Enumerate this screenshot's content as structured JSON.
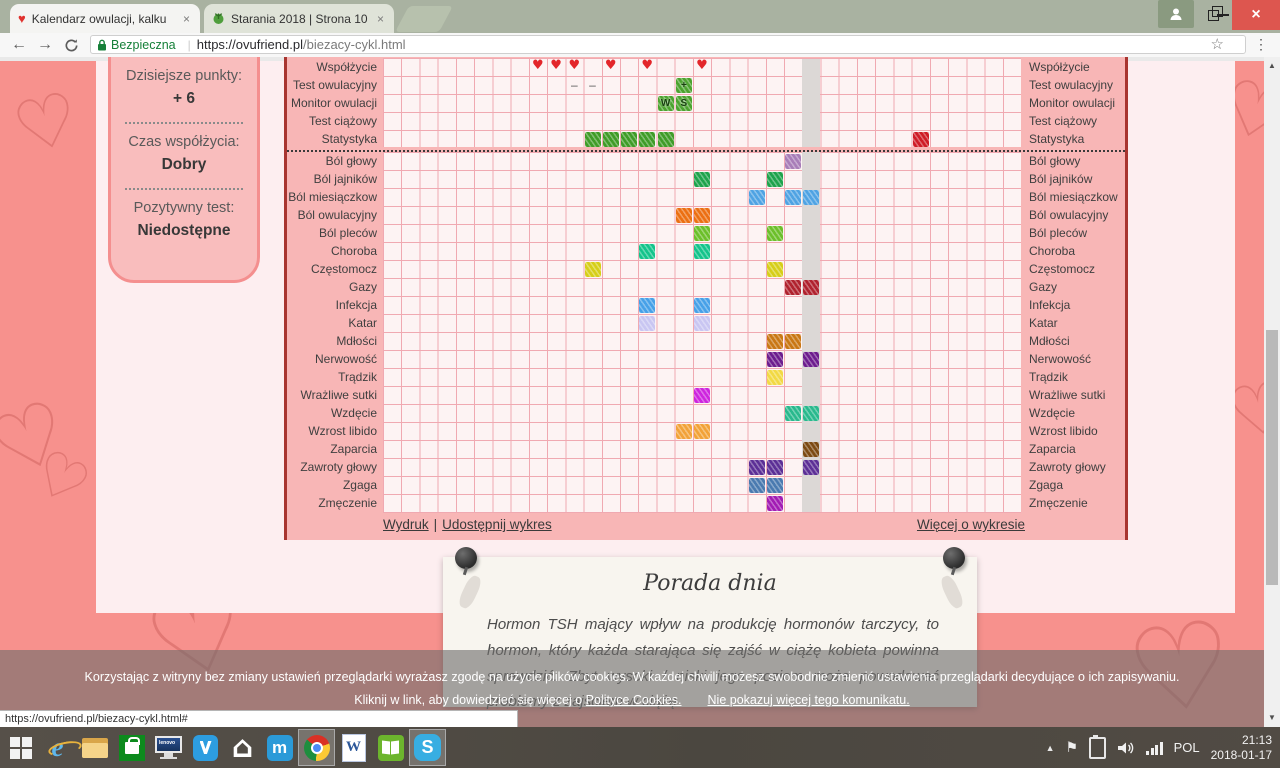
{
  "browser": {
    "tabs": [
      {
        "title": "Kalendarz owulacji, kalku",
        "close": "×"
      },
      {
        "title": "Starania 2018 | Strona 10",
        "close": "×"
      }
    ],
    "security_label": "Bezpieczna",
    "url_host": "https://ovufriend.pl",
    "url_path": "/biezacy-cykl.html"
  },
  "sidebar": {
    "items": [
      {
        "label": "Dzisiejsze punkty:",
        "value": "+ 6"
      },
      {
        "label": "Czas współżycia:",
        "value": "Dobry"
      },
      {
        "label": "Pozytywny test:",
        "value": "Niedostępne"
      }
    ]
  },
  "chart": {
    "num_cols": 35,
    "today_col": 23,
    "top_rows": [
      {
        "label": "Współżycie",
        "marks": [
          {
            "kind": "heart",
            "col": 8
          },
          {
            "kind": "heart",
            "col": 9
          },
          {
            "kind": "heart",
            "col": 10
          },
          {
            "kind": "heart",
            "col": 12
          },
          {
            "kind": "heart",
            "col": 14
          },
          {
            "kind": "heart",
            "col": 17
          }
        ]
      },
      {
        "label": "Test owulacyjny",
        "marks": [
          {
            "kind": "minus",
            "col": 10
          },
          {
            "kind": "minus",
            "col": 11
          },
          {
            "kind": "cell",
            "col": 16,
            "letter": "+",
            "color": "#4ba32e"
          }
        ]
      },
      {
        "label": "Monitor owulacji",
        "marks": [
          {
            "kind": "cell",
            "col": 15,
            "letter": "W",
            "color": "#4ba32e"
          },
          {
            "kind": "cell",
            "col": 16,
            "letter": "S",
            "color": "#4ba32e"
          }
        ]
      },
      {
        "label": "Test ciążowy",
        "marks": []
      },
      {
        "label": "Statystyka",
        "marks": [
          {
            "kind": "cell",
            "col": 11,
            "color": "#3f9c28"
          },
          {
            "kind": "cell",
            "col": 12,
            "color": "#3f9c28"
          },
          {
            "kind": "cell",
            "col": 13,
            "color": "#3f9c28"
          },
          {
            "kind": "cell",
            "col": 14,
            "color": "#3f9c28"
          },
          {
            "kind": "cell",
            "col": 15,
            "color": "#3f9c28"
          },
          {
            "kind": "cell",
            "col": 29,
            "color": "#cf1b26"
          }
        ]
      }
    ],
    "symptom_rows": [
      {
        "label": "Ból głowy",
        "color": "#a87db8",
        "cols": [
          22
        ]
      },
      {
        "label": "Ból jajników",
        "color": "#1ea34c",
        "cols": [
          17,
          21
        ]
      },
      {
        "label": "Ból miesiączkow",
        "color": "#4fa3e3",
        "cols": [
          20,
          22,
          23
        ]
      },
      {
        "label": "Ból owulacyjny",
        "color": "#ec6f12",
        "cols": [
          16,
          17
        ]
      },
      {
        "label": "Ból pleców",
        "color": "#6cbf2a",
        "cols": [
          17,
          21
        ]
      },
      {
        "label": "Choroba",
        "color": "#13c48b",
        "cols": [
          14,
          17
        ]
      },
      {
        "label": "Częstomocz",
        "color": "#d6ce18",
        "cols": [
          11,
          21
        ]
      },
      {
        "label": "Gazy",
        "color": "#b0222e",
        "cols": [
          22,
          23
        ]
      },
      {
        "label": "Infekcja",
        "color": "#47a1e8",
        "cols": [
          14,
          17
        ]
      },
      {
        "label": "Katar",
        "color": "#c9c6f2",
        "cols": [
          14,
          17
        ]
      },
      {
        "label": "Mdłości",
        "color": "#c97714",
        "cols": [
          21,
          22
        ]
      },
      {
        "label": "Nerwowość",
        "color": "#6d1d8e",
        "cols": [
          21,
          23
        ]
      },
      {
        "label": "Trądzik",
        "color": "#f2d944",
        "cols": [
          21
        ]
      },
      {
        "label": "Wrażliwe sutki",
        "color": "#ce24de",
        "cols": [
          17
        ]
      },
      {
        "label": "Wzdęcie",
        "color": "#29b98d",
        "cols": [
          22,
          23
        ]
      },
      {
        "label": "Wzrost libido",
        "color": "#f2a238",
        "cols": [
          16,
          17
        ]
      },
      {
        "label": "Zaparcia",
        "color": "#7c4a12",
        "cols": [
          23
        ]
      },
      {
        "label": "Zawroty głowy",
        "color": "#5c2f96",
        "cols": [
          20,
          21,
          23
        ]
      },
      {
        "label": "Zgaga",
        "color": "#4a7ab0",
        "cols": [
          20,
          21
        ]
      },
      {
        "label": "Zmęczenie",
        "color": "#a21cb4",
        "cols": [
          21
        ]
      }
    ],
    "links": {
      "print": "Wydruk",
      "separator": "|",
      "share": "Udostępnij wykres",
      "more": "Więcej o wykresie"
    }
  },
  "note": {
    "title": "Porada dnia",
    "body": "Hormon TSH mający wpływ na produkcję hormonów tarczycy, to hormon, który każda starająca się zajść w ciążę kobieta powinna sprawdzić. Zbyt wysoki / niski jego poziom może powodować problemy z zajściem w ciążę"
  },
  "cookie_bar": {
    "line1": "Korzystając z witryny bez zmiany ustawień przeglądarki wyrażasz zgodę na użycie plików cookies. W każdej chwili możesz swobodnie zmienić ustawienia przeglądarki decydujące o ich zapisywaniu.",
    "line2_prefix": "Kliknij w link, aby dowiedzieć się więcej o ",
    "link_policy": "Polityce Cookies.",
    "link_dismiss": "Nie pokazuj więcej tego komunikatu."
  },
  "status_bar": {
    "url": "https://ovufriend.pl/biezacy-cykl.html#"
  },
  "taskbar": {
    "icons": [
      {
        "name": "start-icon"
      },
      {
        "name": "ie-icon",
        "glyph": "e"
      },
      {
        "name": "explorer-icon"
      },
      {
        "name": "store-icon"
      },
      {
        "name": "lenovo-icon",
        "glyph": "lenovo"
      },
      {
        "name": "lenovo-store-icon"
      },
      {
        "name": "home-icon",
        "glyph": "⌂"
      },
      {
        "name": "maxthon-icon",
        "glyph": "m"
      },
      {
        "name": "chrome-icon",
        "active": true
      },
      {
        "name": "word-icon",
        "glyph": "W"
      },
      {
        "name": "book-icon"
      },
      {
        "name": "skype-icon",
        "glyph": "S",
        "active": true
      }
    ],
    "tray": {
      "language": "POL",
      "time": "21:13",
      "date": "2018-01-17"
    }
  }
}
